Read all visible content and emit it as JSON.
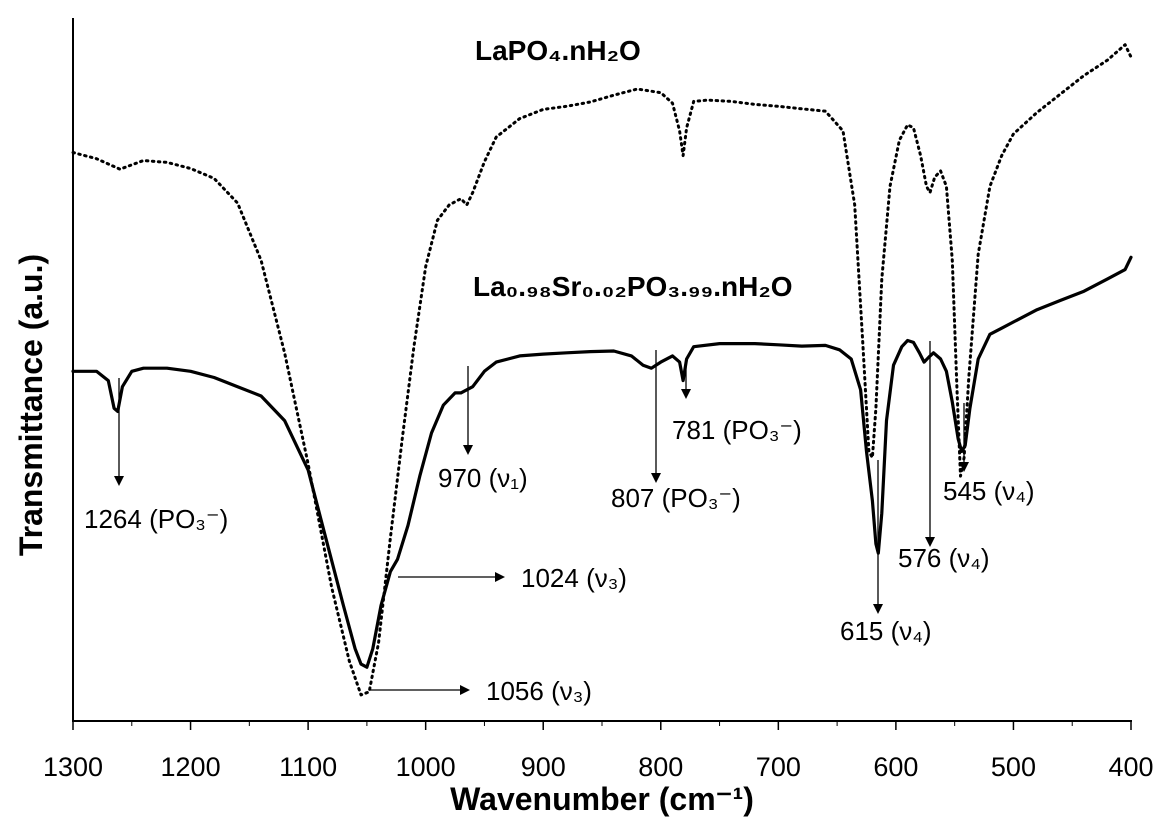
{
  "chart_data": {
    "type": "line",
    "xlabel": "Wavenumber (cm⁻¹)",
    "ylabel": "Transmittance (a.u.)",
    "xlim": [
      1300,
      400
    ],
    "x_reversed": true,
    "x_ticks": [
      1300,
      1200,
      1100,
      1000,
      900,
      800,
      700,
      600,
      500,
      400
    ],
    "y_ticks_shown": false,
    "series": [
      {
        "name": "LaPO₄.nH₂O",
        "style": "dotted",
        "color": "#000000",
        "points": [
          [
            1300,
            88.5
          ],
          [
            1280,
            87.5
          ],
          [
            1260,
            85.8
          ],
          [
            1240,
            87.2
          ],
          [
            1220,
            86.9
          ],
          [
            1200,
            85.9
          ],
          [
            1180,
            84.3
          ],
          [
            1160,
            80.3
          ],
          [
            1140,
            71.0
          ],
          [
            1120,
            56.0
          ],
          [
            1100,
            38.0
          ],
          [
            1080,
            18.0
          ],
          [
            1065,
            6.0
          ],
          [
            1055,
            0.5
          ],
          [
            1048,
            1.0
          ],
          [
            1040,
            9.0
          ],
          [
            1030,
            26.0
          ],
          [
            1020,
            42.0
          ],
          [
            1010,
            57.0
          ],
          [
            1000,
            70.0
          ],
          [
            990,
            77.5
          ],
          [
            980,
            80.0
          ],
          [
            970,
            81.0
          ],
          [
            965,
            80.0
          ],
          [
            960,
            82.0
          ],
          [
            950,
            87.0
          ],
          [
            940,
            91.0
          ],
          [
            920,
            94.0
          ],
          [
            900,
            95.5
          ],
          [
            880,
            96.0
          ],
          [
            860,
            96.7
          ],
          [
            840,
            97.8
          ],
          [
            820,
            98.8
          ],
          [
            800,
            98.2
          ],
          [
            790,
            96.5
          ],
          [
            784,
            92.0
          ],
          [
            781,
            88.0
          ],
          [
            778,
            92.5
          ],
          [
            772,
            96.8
          ],
          [
            760,
            97.0
          ],
          [
            740,
            96.8
          ],
          [
            720,
            96.3
          ],
          [
            700,
            96.0
          ],
          [
            680,
            95.6
          ],
          [
            660,
            95.2
          ],
          [
            645,
            92.0
          ],
          [
            635,
            80.0
          ],
          [
            628,
            57.0
          ],
          [
            623,
            40.0
          ],
          [
            620,
            39.0
          ],
          [
            617,
            47.0
          ],
          [
            612,
            68.0
          ],
          [
            605,
            83.0
          ],
          [
            597,
            90.5
          ],
          [
            590,
            93.0
          ],
          [
            585,
            92.5
          ],
          [
            579,
            88.0
          ],
          [
            574,
            83.0
          ],
          [
            571,
            82.0
          ],
          [
            567,
            84.5
          ],
          [
            562,
            85.5
          ],
          [
            557,
            83.0
          ],
          [
            552,
            71.0
          ],
          [
            548,
            50.0
          ],
          [
            545,
            36.0
          ],
          [
            542,
            39.0
          ],
          [
            538,
            52.0
          ],
          [
            530,
            72.0
          ],
          [
            520,
            83.0
          ],
          [
            510,
            88.0
          ],
          [
            500,
            91.5
          ],
          [
            480,
            95.0
          ],
          [
            460,
            98.0
          ],
          [
            440,
            101.0
          ],
          [
            420,
            103.5
          ],
          [
            405,
            106.0
          ],
          [
            400,
            104.0
          ]
        ]
      },
      {
        "name": "La₀.₉₈Sr₀.₀₂PO₃.₉₉.nH₂O",
        "style": "solid",
        "color": "#000000",
        "points": [
          [
            1300,
            53.0
          ],
          [
            1280,
            53.0
          ],
          [
            1270,
            51.5
          ],
          [
            1265,
            47.0
          ],
          [
            1262,
            46.5
          ],
          [
            1258,
            50.5
          ],
          [
            1250,
            53.0
          ],
          [
            1240,
            53.5
          ],
          [
            1220,
            53.5
          ],
          [
            1200,
            53.0
          ],
          [
            1180,
            52.0
          ],
          [
            1160,
            50.5
          ],
          [
            1140,
            49.0
          ],
          [
            1120,
            45.0
          ],
          [
            1100,
            37.0
          ],
          [
            1085,
            26.0
          ],
          [
            1070,
            15.0
          ],
          [
            1060,
            8.0
          ],
          [
            1055,
            5.5
          ],
          [
            1050,
            5.0
          ],
          [
            1045,
            8.0
          ],
          [
            1038,
            15.0
          ],
          [
            1030,
            20.5
          ],
          [
            1024,
            22.5
          ],
          [
            1015,
            28.0
          ],
          [
            1005,
            36.0
          ],
          [
            995,
            43.0
          ],
          [
            985,
            47.5
          ],
          [
            975,
            49.5
          ],
          [
            970,
            49.5
          ],
          [
            960,
            50.5
          ],
          [
            950,
            53.0
          ],
          [
            940,
            54.5
          ],
          [
            920,
            55.5
          ],
          [
            900,
            55.8
          ],
          [
            880,
            56.0
          ],
          [
            860,
            56.2
          ],
          [
            840,
            56.3
          ],
          [
            825,
            55.5
          ],
          [
            815,
            54.0
          ],
          [
            808,
            53.5
          ],
          [
            800,
            54.5
          ],
          [
            790,
            55.5
          ],
          [
            784,
            54.5
          ],
          [
            781,
            51.5
          ],
          [
            778,
            55.0
          ],
          [
            772,
            57.0
          ],
          [
            750,
            57.5
          ],
          [
            720,
            57.5
          ],
          [
            700,
            57.3
          ],
          [
            680,
            57.1
          ],
          [
            660,
            57.2
          ],
          [
            648,
            56.5
          ],
          [
            638,
            55.0
          ],
          [
            630,
            50.0
          ],
          [
            625,
            40.0
          ],
          [
            620,
            32.0
          ],
          [
            617,
            25.0
          ],
          [
            615,
            23.5
          ],
          [
            612,
            30.0
          ],
          [
            608,
            45.0
          ],
          [
            602,
            54.0
          ],
          [
            595,
            57.0
          ],
          [
            590,
            58.0
          ],
          [
            585,
            57.7
          ],
          [
            580,
            56.0
          ],
          [
            576,
            54.5
          ],
          [
            572,
            55.3
          ],
          [
            568,
            56.0
          ],
          [
            562,
            55.0
          ],
          [
            557,
            53.0
          ],
          [
            552,
            48.0
          ],
          [
            547,
            42.0
          ],
          [
            544,
            40.0
          ],
          [
            541,
            41.0
          ],
          [
            537,
            47.0
          ],
          [
            530,
            55.0
          ],
          [
            520,
            59.0
          ],
          [
            510,
            60.0
          ],
          [
            500,
            61.0
          ],
          [
            480,
            63.0
          ],
          [
            460,
            64.5
          ],
          [
            440,
            66.0
          ],
          [
            420,
            68.0
          ],
          [
            405,
            69.5
          ],
          [
            400,
            71.5
          ]
        ]
      }
    ],
    "annotations": [
      {
        "text": "1264 (PO₃⁻)",
        "x": 1264
      },
      {
        "text": "1056 (ν₃)",
        "x": 1056
      },
      {
        "text": "1024 (ν₃)",
        "x": 1024
      },
      {
        "text": "970 (ν₁)",
        "x": 970
      },
      {
        "text": "807 (PO₃⁻)",
        "x": 807
      },
      {
        "text": "781 (PO₃⁻)",
        "x": 781
      },
      {
        "text": "615 (ν₄)",
        "x": 615
      },
      {
        "text": "576 (ν₄)",
        "x": 576
      },
      {
        "text": "545 (ν₄)",
        "x": 545
      }
    ]
  }
}
